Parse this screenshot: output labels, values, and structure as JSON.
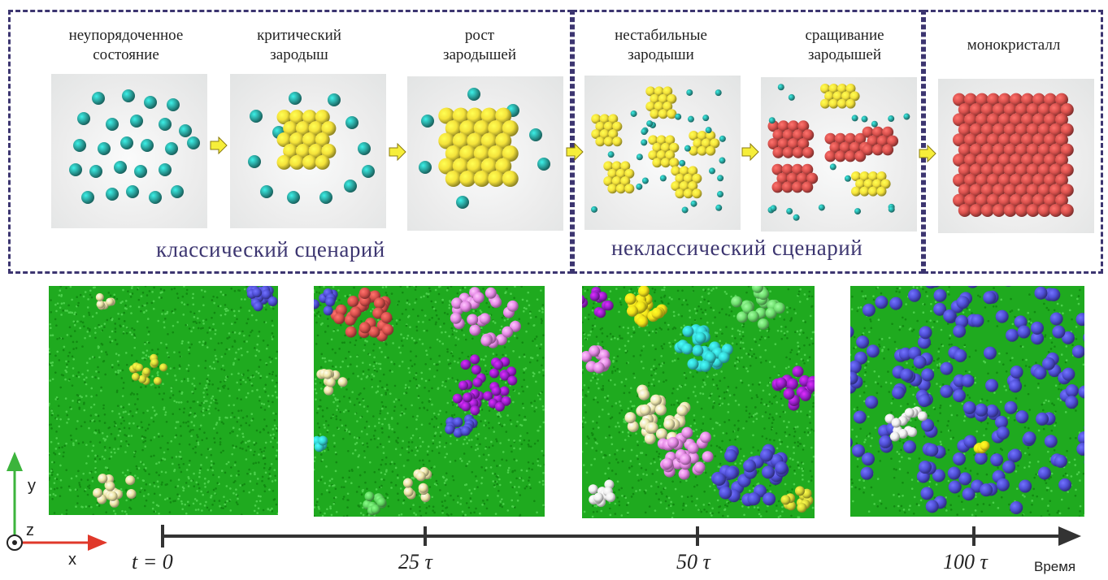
{
  "stages": [
    {
      "label_line1": "неупорядоченное",
      "label_line2": "состояние"
    },
    {
      "label_line1": "критический",
      "label_line2": "зародыш"
    },
    {
      "label_line1": "рост",
      "label_line2": "зародышей"
    },
    {
      "label_line1": "нестабильные",
      "label_line2": "зародыши"
    },
    {
      "label_line1": "сращивание",
      "label_line2": "зародышей"
    },
    {
      "label_line1": "монокристалл",
      "label_line2": ""
    }
  ],
  "scenarios": {
    "classical": "классический сценарий",
    "nonclassical": "неклассический сценарий"
  },
  "timeline": {
    "ticks": [
      "t = 0",
      "25 τ",
      "50 τ",
      "100 τ"
    ],
    "axis_word": "Время"
  },
  "axes": {
    "y": "y",
    "z": "z",
    "x": "x"
  },
  "colors": {
    "teal": "#2aa6a0",
    "yellow": "#f4e23a",
    "red": "#d9504c",
    "green_bg": "#22b022",
    "blue": "#4f4fd6",
    "frame": "#3c3570"
  }
}
